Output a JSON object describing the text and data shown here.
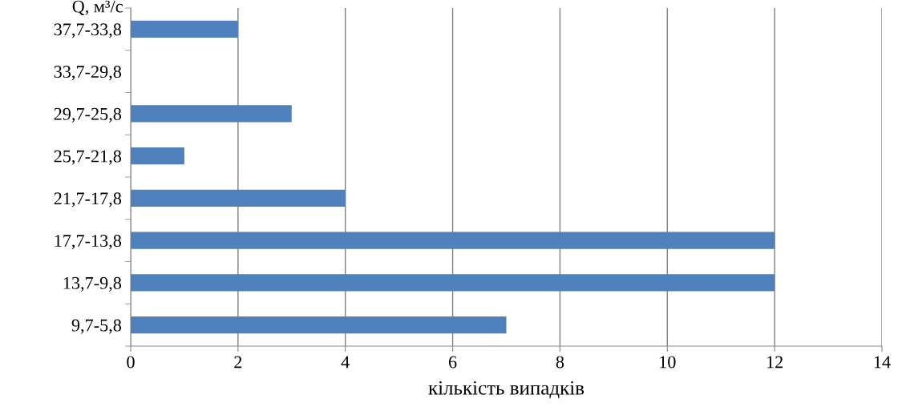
{
  "chart_data": {
    "type": "bar",
    "orientation": "horizontal",
    "ylabel": "Q, м³/с",
    "xlabel": "кількість випадків",
    "categories": [
      "37,7-33,8",
      "33,7-29,8",
      "29,7-25,8",
      "25,7-21,8",
      "21,7-17,8",
      "17,7-13,8",
      "13,7-9,8",
      "9,7-5,8"
    ],
    "values": [
      2,
      0,
      3,
      1,
      4,
      12,
      12,
      7
    ],
    "color": "#4f81bd",
    "xlim": [
      0,
      14
    ],
    "xticks": [
      0,
      2,
      4,
      6,
      8,
      10,
      12,
      14
    ],
    "grid": "x",
    "legend": false
  }
}
